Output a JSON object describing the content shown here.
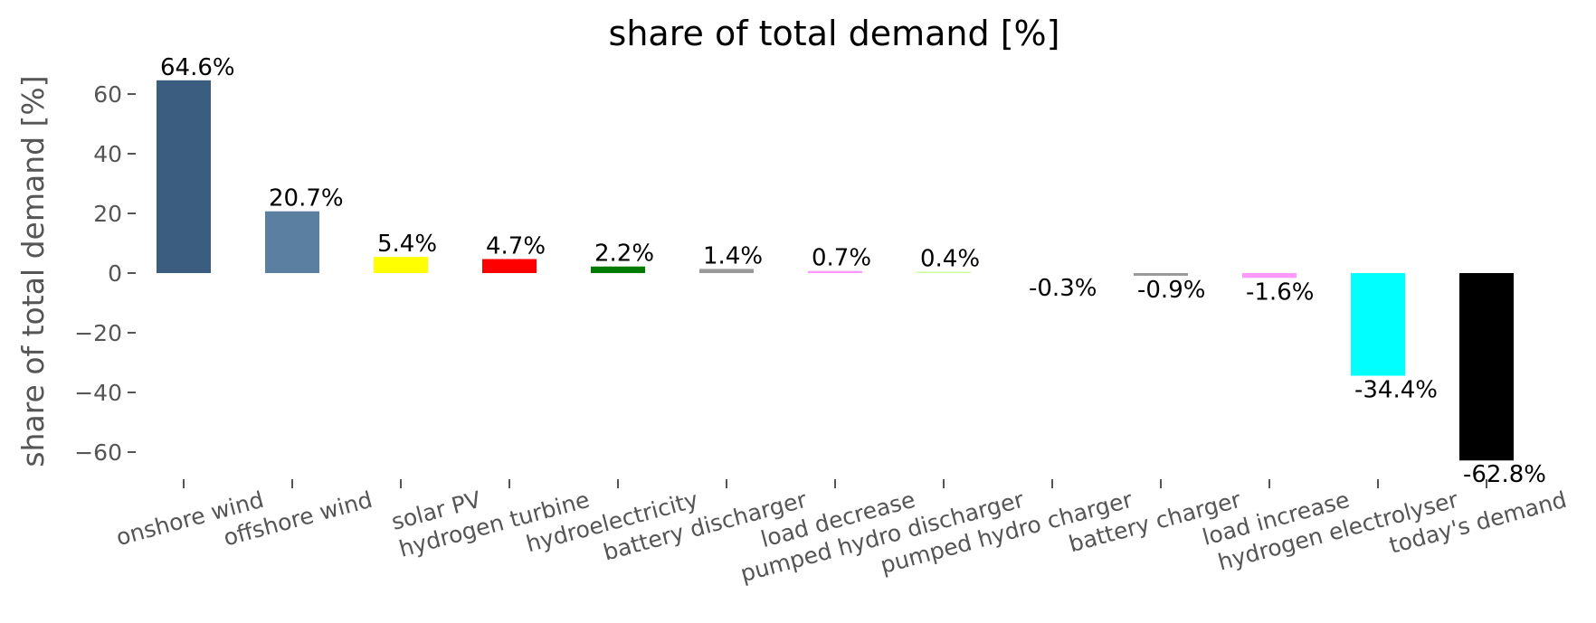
{
  "chart_data": {
    "type": "bar",
    "title": "share of total demand [%]",
    "ylabel": "share of total demand [%]",
    "xlabel": "",
    "ylim": [
      -72,
      72
    ],
    "yticks": [
      60,
      40,
      20,
      0,
      -20,
      -40,
      -60
    ],
    "ytick_labels": [
      "60",
      "40",
      "20",
      "0",
      "−20",
      "−40",
      "−60"
    ],
    "grid": false,
    "categories": [
      "onshore wind",
      "offshore wind",
      "solar PV",
      "hydrogen turbine",
      "hydroelectricity",
      "battery discharger",
      "load decrease",
      "pumped hydro discharger",
      "pumped hydro charger",
      "battery charger",
      "load increase",
      "hydrogen electrolyser",
      "today's demand"
    ],
    "values": [
      64.6,
      20.7,
      5.4,
      4.7,
      2.2,
      1.4,
      0.7,
      0.4,
      -0.3,
      -0.9,
      -1.6,
      -34.4,
      -62.8
    ],
    "value_labels": [
      "64.6%",
      "20.7%",
      "5.4%",
      "4.7%",
      "2.2%",
      "1.4%",
      "0.7%",
      "0.4%",
      "-0.3%",
      "-0.9%",
      "-1.6%",
      "-34.4%",
      "-62.8%"
    ],
    "colors": [
      "#3b5e80",
      "#5b7fa0",
      "#ffff00",
      "#ff0000",
      "#007a00",
      "#999999",
      "#ff99ff",
      "#ccff99",
      "#ffffff",
      "#999999",
      "#ff99ff",
      "#00ffff",
      "#000000"
    ]
  }
}
